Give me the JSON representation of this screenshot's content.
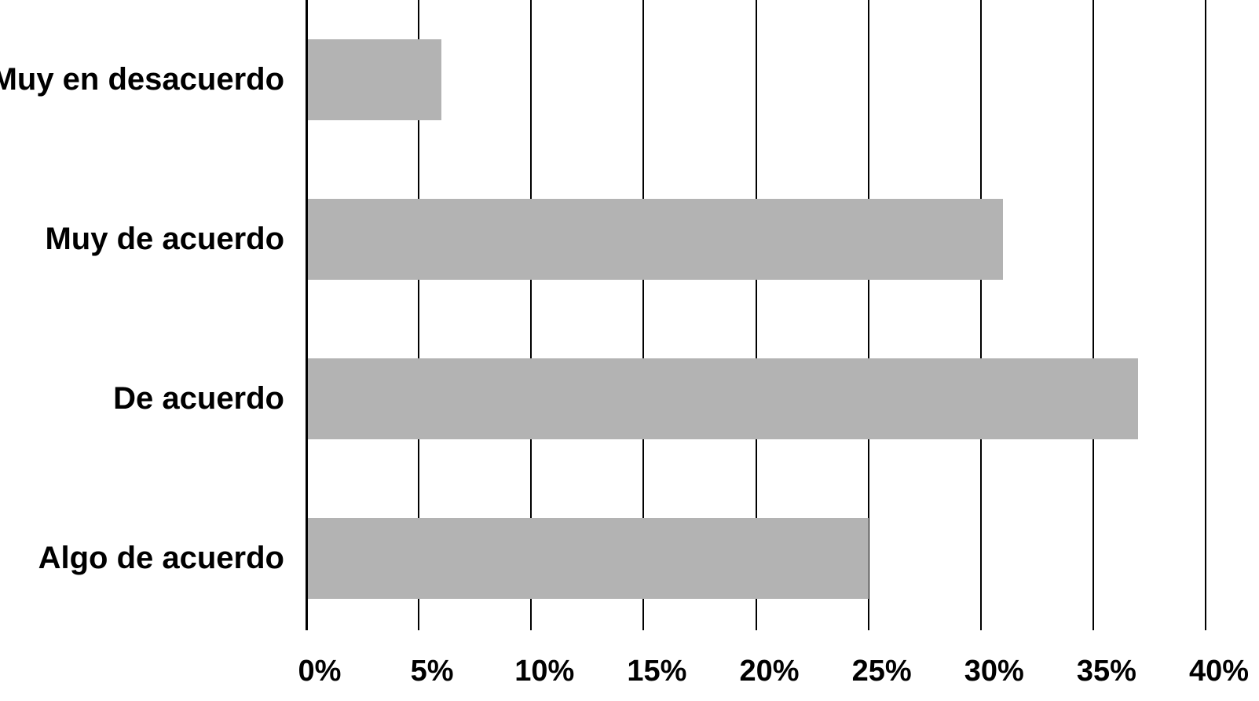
{
  "chart_data": {
    "type": "bar",
    "orientation": "horizontal",
    "categories": [
      "Muy en desacuerdo",
      "Muy de acuerdo",
      "De acuerdo",
      "Algo de acuerdo"
    ],
    "values": [
      6,
      31,
      37,
      25
    ],
    "value_unit": "%",
    "xlim": [
      0,
      40
    ],
    "x_tick_values": [
      0,
      5,
      10,
      15,
      20,
      25,
      30,
      35,
      40
    ],
    "x_tick_labels": [
      "0%",
      "5%",
      "10%",
      "15%",
      "20%",
      "25%",
      "30%",
      "35%",
      "40%"
    ],
    "x_tick_nums": [
      "0",
      "5",
      "10",
      "15",
      "20",
      "25",
      "30",
      "35",
      "40"
    ],
    "percent_sign": "%",
    "grid": true,
    "legend": "none",
    "bar_color": "#b3b3b3",
    "gridline_color": "#000000",
    "axis_color": "#000000",
    "text_color": "#000000",
    "background_color": "#ffffff"
  }
}
